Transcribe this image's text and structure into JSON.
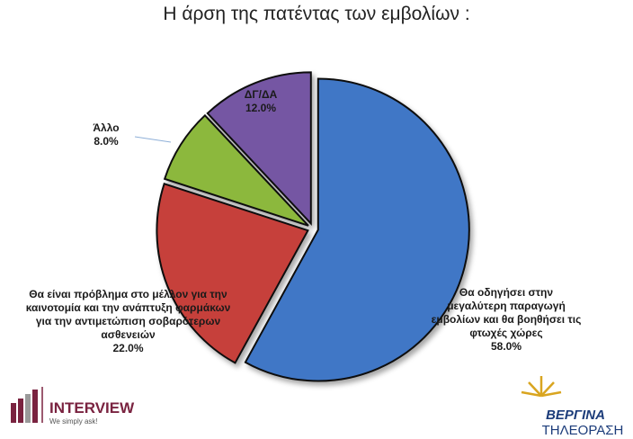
{
  "chart_data": {
    "type": "pie",
    "title": "Η άρση της πατέντας των εμβολίων :",
    "categories": [
      "Θα οδηγήσει στην μεγαλύτερη παραγωγή εμβολίων και θα βοηθήσει τις φτωχές χώρες",
      "Θα είναι πρόβλημα στο μέλλον για την καινοτομία και την ανάπτυξη φαρμάκων για την αντιμετώπιση σοβαρότερων ασθενειών",
      "Άλλο",
      "ΔΓ/ΔΑ"
    ],
    "values": [
      58,
      22,
      8,
      12
    ],
    "value_labels": [
      "58.0%",
      "22.0%",
      "8.0%",
      "12.0%"
    ],
    "colors": [
      "#3f77c6",
      "#c63f3b",
      "#8cb83d",
      "#7556a3"
    ]
  },
  "logos": {
    "interview": "INTERVIEW",
    "interview_tagline": "We simply ask!",
    "vergina": "ΒΕΡΓΙΝΑ",
    "vergina_sub": "ΤΗΛΕΟΡΑΣΗ"
  }
}
